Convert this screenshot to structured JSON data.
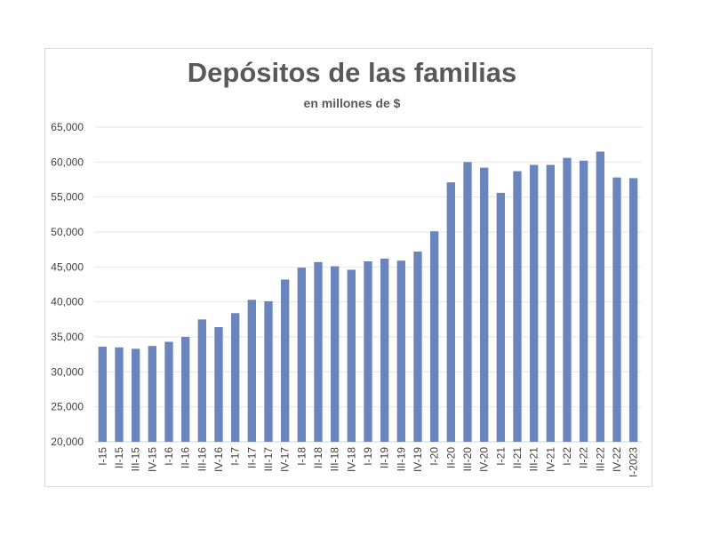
{
  "chart_data": {
    "type": "bar",
    "title": "Depósitos de las familias",
    "subtitle": "en millones de $",
    "xlabel": "",
    "ylabel": "",
    "ylim": [
      20000,
      65000
    ],
    "yticks": [
      "20,000",
      "25,000",
      "30,000",
      "35,000",
      "40,000",
      "45,000",
      "50,000",
      "55,000",
      "60,000",
      "65,000"
    ],
    "grid": true,
    "bar_color": "#6a84bd",
    "categories": [
      "I-15",
      "II-15",
      "III-15",
      "IV-15",
      "I-16",
      "II-16",
      "III-16",
      "IV-16",
      "I-17",
      "II-17",
      "III-17",
      "IV-17",
      "I-18",
      "II-18",
      "III-18",
      "IV-18",
      "I-19",
      "II-19",
      "III-19",
      "IV-19",
      "I-20",
      "II-20",
      "III-20",
      "IV-20",
      "I-21",
      "II-21",
      "III-21",
      "IV-21",
      "I-22",
      "II-22",
      "III-22",
      "IV-22",
      "I-2023"
    ],
    "values": [
      33600,
      33500,
      33300,
      33700,
      34300,
      35000,
      37500,
      36400,
      38400,
      40300,
      40100,
      43200,
      44900,
      45700,
      45100,
      44600,
      45800,
      46200,
      45900,
      47200,
      50100,
      57100,
      60000,
      59200,
      55600,
      58700,
      59600,
      59600,
      60600,
      60200,
      61500,
      57800,
      57700
    ]
  }
}
